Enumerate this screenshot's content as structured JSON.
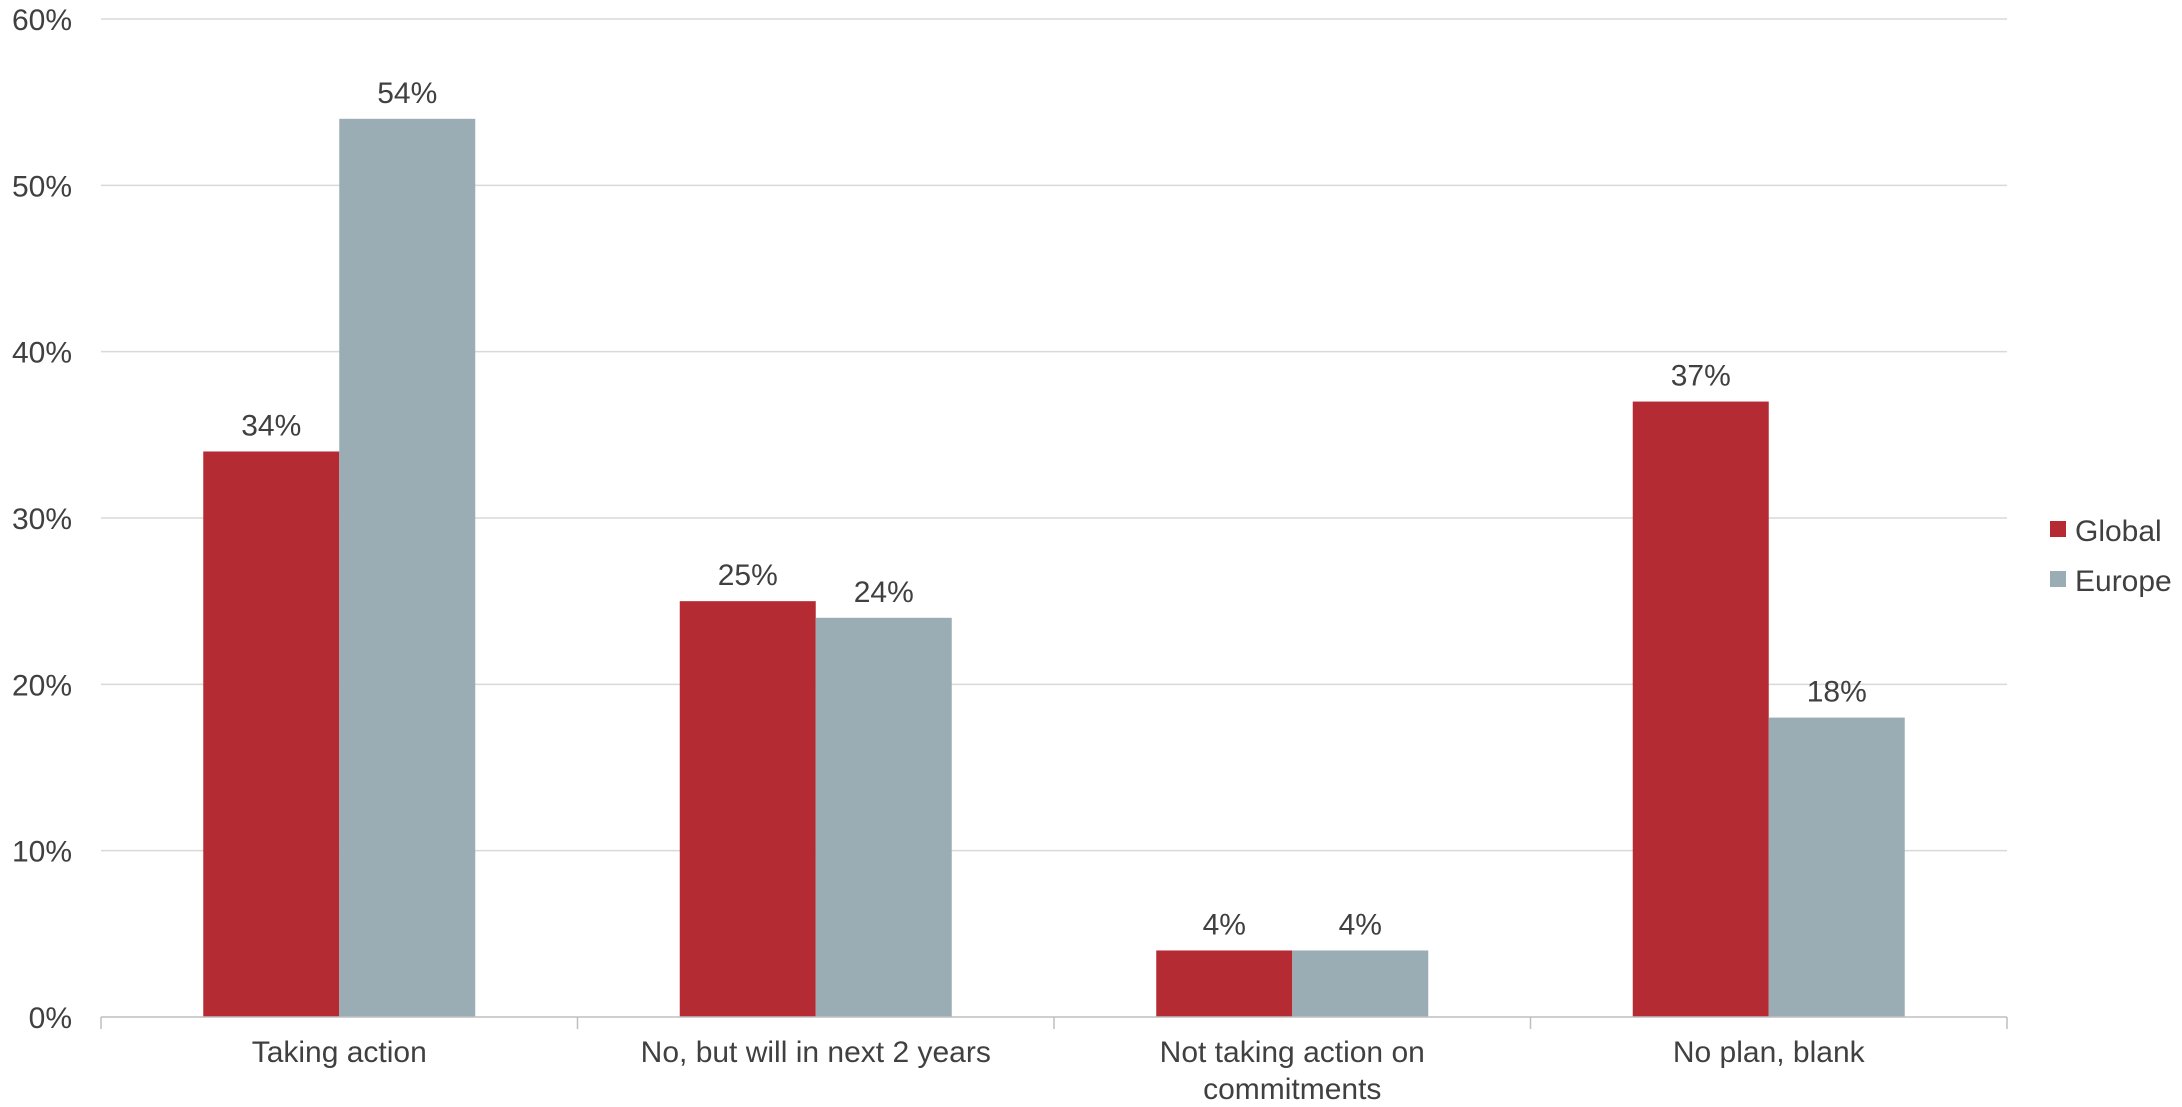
{
  "chart_data": {
    "type": "bar",
    "title": "",
    "xlabel": "",
    "ylabel": "",
    "categories": [
      [
        "Taking action"
      ],
      [
        "No, but will in next 2 years"
      ],
      [
        "Not taking action on",
        "commitments"
      ],
      [
        "No plan, blank"
      ]
    ],
    "series": [
      {
        "name": "Global",
        "color": "#B52B34",
        "values": [
          34,
          25,
          4,
          37
        ],
        "labels": [
          "34%",
          "25%",
          "4%",
          "37%"
        ]
      },
      {
        "name": "Europe",
        "color": "#9BADB4",
        "values": [
          54,
          24,
          4,
          18
        ],
        "labels": [
          "54%",
          "24%",
          "4%",
          "18%"
        ]
      }
    ],
    "ylim": [
      0,
      60
    ],
    "yticks": [
      0,
      10,
      20,
      30,
      40,
      50,
      60
    ],
    "ytick_labels": [
      "0%",
      "10%",
      "20%",
      "30%",
      "40%",
      "50%",
      "60%"
    ],
    "grid": true,
    "legend": "right",
    "colors": {
      "grid": "#D9D9D9",
      "axis": "#BFBFBF",
      "text": "#404040"
    }
  }
}
